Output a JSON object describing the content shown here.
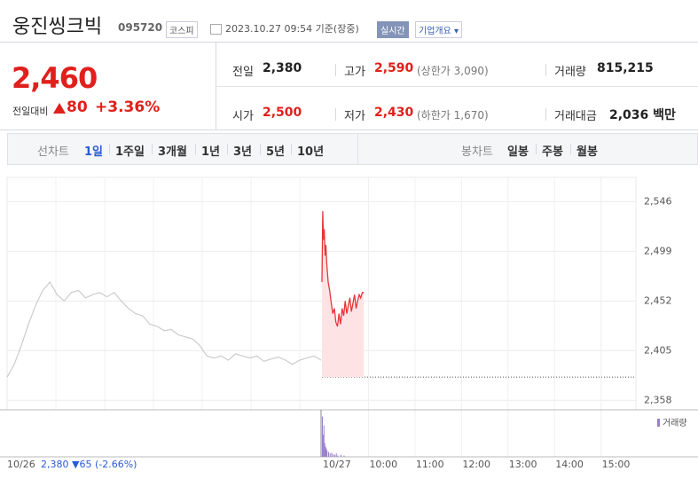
{
  "header": {
    "name": "웅진씽크빅",
    "code": "095720",
    "market": "코스피",
    "time": "2023.10.27 09:54 기준(장중)",
    "realtime": "실시간",
    "overview": "기업개요"
  },
  "quote": {
    "price": "2,460",
    "change_label": "전일대비",
    "change": "80",
    "change_rate": "+3.36%"
  },
  "stats": [
    {
      "label": "전일",
      "value": "2,380"
    },
    {
      "label": "고가",
      "value": "2,590",
      "note": "(상한가 3,090)"
    },
    {
      "label": "거래량",
      "value": "815,215"
    },
    {
      "label": "시가",
      "value": "2,500"
    },
    {
      "label": "저가",
      "value": "2,430",
      "note": "(하한가 1,670)"
    },
    {
      "label": "거래대금",
      "value": "2,036 백만"
    }
  ],
  "tabs": {
    "line_label": "선차트",
    "periods": [
      "1일",
      "1주일",
      "3개월",
      "1년",
      "3년",
      "5년",
      "10년"
    ],
    "candle_label": "봉차트",
    "candles": [
      "일봉",
      "주봉",
      "월봉"
    ]
  },
  "chart": {
    "type": "line",
    "ylim": [
      2349,
      2569
    ],
    "yticks": [
      {
        "value": 2358,
        "label": "2,358"
      },
      {
        "value": 2405,
        "label": "2,405"
      },
      {
        "value": 2452,
        "label": "2,452"
      },
      {
        "value": 2499,
        "label": "2,499"
      },
      {
        "value": 2546,
        "label": "2,546"
      }
    ],
    "base": 2380,
    "previous_day": {
      "date": "10/26",
      "summary": "2,380 ▼65 (-2.66%)",
      "color": "#cccccc",
      "values": [
        2380,
        2392,
        2410,
        2430,
        2448,
        2462,
        2470,
        2458,
        2452,
        2460,
        2462,
        2455,
        2458,
        2460,
        2456,
        2460,
        2452,
        2445,
        2440,
        2438,
        2430,
        2428,
        2424,
        2425,
        2420,
        2418,
        2416,
        2410,
        2400,
        2398,
        2400,
        2396,
        2402,
        2400,
        2398,
        2400,
        2395,
        2397,
        2399,
        2396,
        2392,
        2396,
        2398,
        2400,
        2396
      ]
    },
    "today": {
      "date": "10/27",
      "color": "#e8353a",
      "fill": "#fde3e4",
      "x": [
        0,
        1,
        2,
        3,
        4,
        5,
        6,
        7,
        8,
        10,
        12,
        14,
        16,
        18,
        20,
        22,
        24,
        26,
        28,
        30,
        32,
        34,
        36,
        38,
        40,
        42,
        44,
        46,
        48,
        50,
        52,
        54
      ],
      "values": [
        2470,
        2537,
        2510,
        2520,
        2495,
        2505,
        2490,
        2480,
        2470,
        2462,
        2450,
        2440,
        2445,
        2432,
        2428,
        2440,
        2430,
        2445,
        2438,
        2452,
        2440,
        2448,
        2455,
        2442,
        2450,
        2458,
        2445,
        2452,
        2458,
        2455,
        2460,
        2460
      ]
    },
    "xlim": [
      0,
      405
    ],
    "xticks": [
      {
        "value": 60,
        "label": "10:00"
      },
      {
        "value": 120,
        "label": "11:00"
      },
      {
        "value": 180,
        "label": "12:00"
      },
      {
        "value": 240,
        "label": "13:00"
      },
      {
        "value": 300,
        "label": "14:00"
      },
      {
        "value": 360,
        "label": "15:00"
      }
    ],
    "volume": {
      "label": "거래량",
      "color": "#9a7fc8",
      "ylim": [
        0,
        60000
      ],
      "x": [
        0,
        1,
        2,
        3,
        4,
        5,
        6,
        8,
        10,
        12,
        14,
        16,
        18,
        20,
        24,
        28
      ],
      "values": [
        58000,
        32000,
        45000,
        20000,
        15000,
        12000,
        9000,
        7000,
        5000,
        6000,
        4000,
        3000,
        5000,
        2000,
        3000,
        2000
      ]
    }
  }
}
